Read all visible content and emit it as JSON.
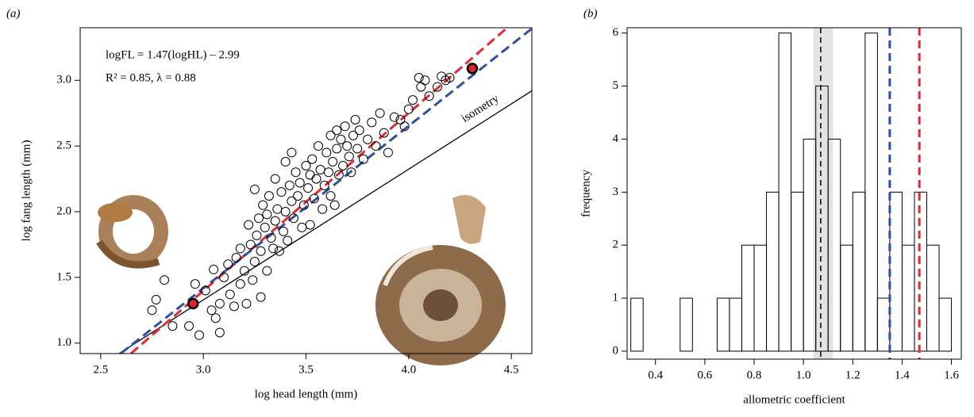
{
  "chart_data": [
    {
      "type": "scatter",
      "panel_label": "(a)",
      "xlabel": "log head length (mm)",
      "ylabel": "log fang length (mm)",
      "xlim": [
        2.4,
        4.6
      ],
      "ylim": [
        0.92,
        3.4
      ],
      "xticks": [
        2.5,
        {
          "value": 3,
          "label": "3.0"
        },
        3.5,
        {
          "value": 4,
          "label": "4.0"
        },
        4.5
      ],
      "yticks": [
        {
          "value": 1,
          "label": "1.0"
        },
        1.5,
        {
          "value": 2,
          "label": "2.0"
        },
        2.5,
        {
          "value": 3,
          "label": "3.0"
        }
      ],
      "annotations": [
        "logFL = 1.47(logHL) – 2.99",
        "R² = 0.85, λ = 0.88",
        "isometry"
      ],
      "color": "#000000",
      "x": [
        2.75,
        2.77,
        2.81,
        2.85,
        2.93,
        2.96,
        2.98,
        3.01,
        3.04,
        3.05,
        3.06,
        3.08,
        3.08,
        3.1,
        3.12,
        3.13,
        3.15,
        3.16,
        3.18,
        3.18,
        3.2,
        3.21,
        3.22,
        3.23,
        3.24,
        3.25,
        3.25,
        3.26,
        3.27,
        3.28,
        3.28,
        3.29,
        3.3,
        3.31,
        3.31,
        3.32,
        3.33,
        3.34,
        3.35,
        3.35,
        3.36,
        3.37,
        3.38,
        3.39,
        3.4,
        3.4,
        3.41,
        3.42,
        3.43,
        3.43,
        3.44,
        3.45,
        3.46,
        3.47,
        3.48,
        3.49,
        3.5,
        3.51,
        3.52,
        3.52,
        3.53,
        3.54,
        3.55,
        3.56,
        3.57,
        3.58,
        3.59,
        3.6,
        3.61,
        3.62,
        3.62,
        3.63,
        3.64,
        3.65,
        3.65,
        3.66,
        3.67,
        3.68,
        3.69,
        3.7,
        3.71,
        3.72,
        3.73,
        3.74,
        3.75,
        3.76,
        3.78,
        3.8,
        3.82,
        3.84,
        3.86,
        3.88,
        3.9,
        3.93,
        3.96,
        3.98,
        4.0,
        4.02,
        4.05,
        4.06,
        4.08,
        4.1,
        4.14,
        4.16,
        4.18,
        4.2
      ],
      "values": [
        1.25,
        1.33,
        1.48,
        1.13,
        1.13,
        1.45,
        1.06,
        1.4,
        1.25,
        1.56,
        1.19,
        1.08,
        1.3,
        1.5,
        1.6,
        1.37,
        1.28,
        1.65,
        1.72,
        1.45,
        1.55,
        1.3,
        1.9,
        1.75,
        1.48,
        1.62,
        2.17,
        1.82,
        1.95,
        1.7,
        1.35,
        2.05,
        1.88,
        1.55,
        1.98,
        2.12,
        1.8,
        1.72,
        2.25,
        1.93,
        2.02,
        1.7,
        2.15,
        1.85,
        2.38,
        2.0,
        1.78,
        2.2,
        2.45,
        2.08,
        1.95,
        2.3,
        2.12,
        2.22,
        1.88,
        2.05,
        2.35,
        2.18,
        2.28,
        1.9,
        2.4,
        2.1,
        2.25,
        2.5,
        2.32,
        2.02,
        2.2,
        2.45,
        2.3,
        2.58,
        2.12,
        2.38,
        2.05,
        2.62,
        2.48,
        2.28,
        2.55,
        2.35,
        2.65,
        2.5,
        2.42,
        2.3,
        2.58,
        2.7,
        2.48,
        2.62,
        2.4,
        2.55,
        2.68,
        2.5,
        2.75,
        2.6,
        2.45,
        2.72,
        2.7,
        2.65,
        2.78,
        2.85,
        3.02,
        2.95,
        3.0,
        2.88,
        2.95,
        3.03,
        3.0,
        3.02
      ],
      "highlight": {
        "color": "#e0202a",
        "x": [
          2.95,
          4.31
        ],
        "values": [
          1.3,
          3.09
        ]
      },
      "lines": [
        {
          "color": "#000000",
          "style": "solid",
          "x": [
            2.589,
            4.6
          ],
          "values": [
            0.92,
            2.92
          ]
        },
        {
          "color": "#e02b35",
          "style": "dashed",
          "x": [
            2.647,
            4.48
          ],
          "values": [
            0.92,
            3.4
          ]
        },
        {
          "color": "#2f4fa3",
          "style": "dashed",
          "x": [
            2.597,
            4.597
          ],
          "values": [
            0.92,
            3.39
          ]
        }
      ]
    },
    {
      "type": "histogram",
      "panel_label": "(b)",
      "xlabel": "allometric coefficient",
      "ylabel": "frequency",
      "xlim": [
        0.285,
        1.64
      ],
      "ylim": [
        -0.15,
        6.1
      ],
      "xticks": [
        0.4,
        0.6,
        0.8,
        {
          "value": 1,
          "label": "1.0"
        },
        1.2,
        1.4,
        1.6
      ],
      "yticks": [
        0,
        1,
        2,
        3,
        4,
        5,
        6
      ],
      "bins": [
        0.3,
        0.35,
        0.4,
        0.45,
        0.5,
        0.55,
        0.6,
        0.65,
        0.7,
        0.75,
        0.8,
        0.85,
        0.9,
        0.95,
        1.0,
        1.05,
        1.1,
        1.15,
        1.2,
        1.25,
        1.3,
        1.35,
        1.4,
        1.45,
        1.5,
        1.55,
        1.6,
        1.65
      ],
      "values": [
        1,
        0,
        0,
        0,
        1,
        0,
        0,
        1,
        1,
        2,
        2,
        3,
        6,
        3,
        4,
        5,
        4,
        2,
        3,
        6,
        1,
        3,
        2,
        3,
        2,
        1,
        0
      ],
      "color": "#ffffff",
      "band": {
        "color": "#e3e3e3",
        "range": [
          1.04,
          1.12
        ]
      },
      "vlines": [
        {
          "value": 1.07,
          "color": "#000000"
        },
        {
          "value": 1.35,
          "color": "#2f4fa3"
        },
        {
          "value": 1.47,
          "color": "#e02b35"
        }
      ]
    }
  ]
}
